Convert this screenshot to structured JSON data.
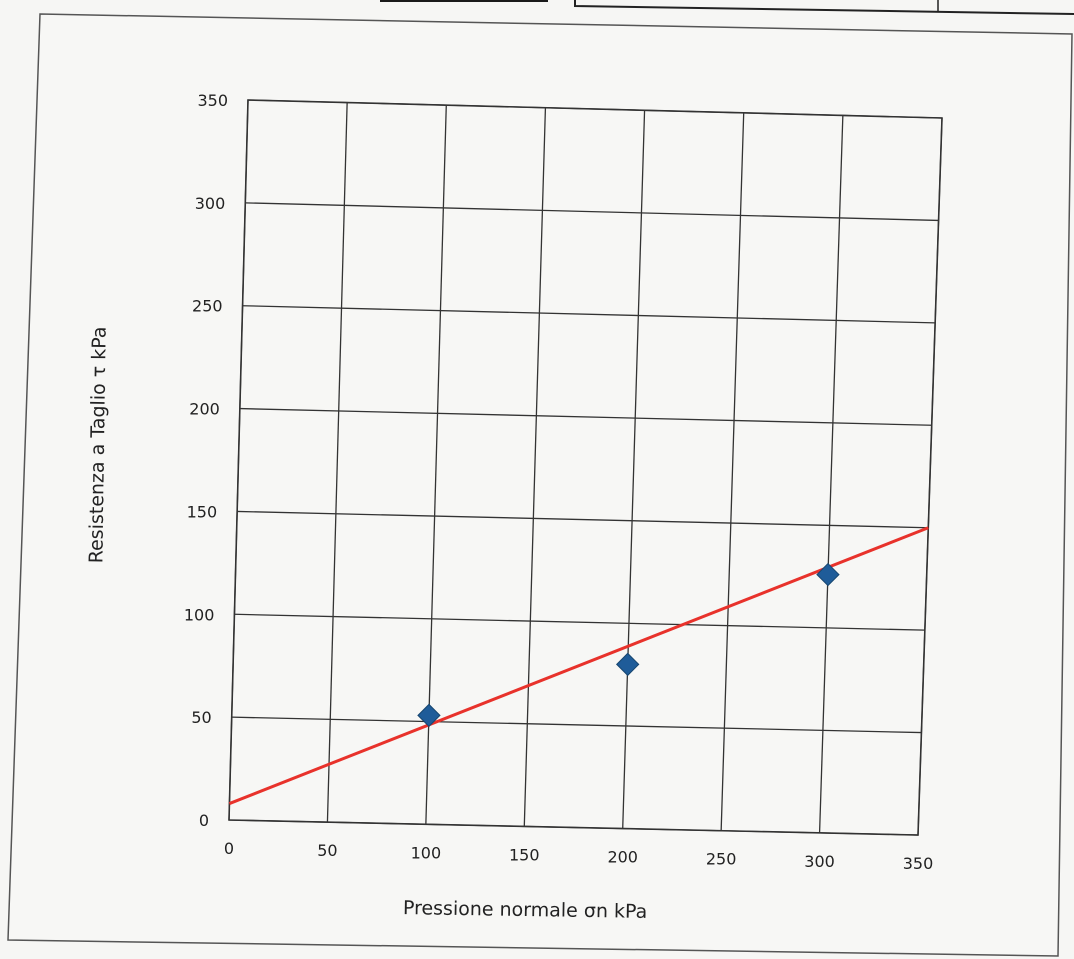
{
  "chart_data": {
    "type": "scatter",
    "title": "",
    "xlabel": "Pressione normale σn kPa",
    "ylabel": "Resistenza a Taglio τ  kPa",
    "xlim": [
      0,
      350
    ],
    "ylim": [
      0,
      350
    ],
    "xticks": [
      "0",
      "50",
      "100",
      "150",
      "200",
      "250",
      "300",
      "350"
    ],
    "yticks": [
      "0",
      "50",
      "100",
      "150",
      "200",
      "250",
      "300",
      "350"
    ],
    "grid": true,
    "series": [
      {
        "type": "scatter",
        "marker": "diamond",
        "color": "#1f5c99",
        "x": [
          100,
          200,
          300
        ],
        "y": [
          53,
          80,
          126
        ]
      },
      {
        "type": "line",
        "color": "#e8322b",
        "x": [
          0,
          350
        ],
        "y": [
          8,
          150
        ]
      }
    ]
  }
}
